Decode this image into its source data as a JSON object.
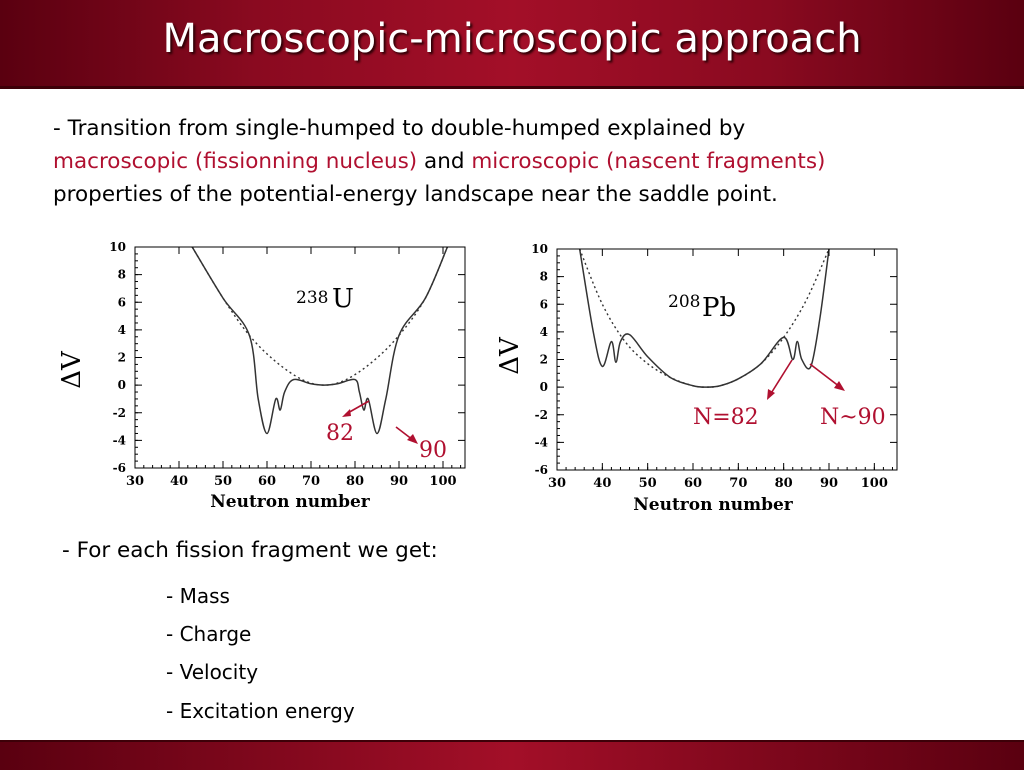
{
  "slide": {
    "title": "Macroscopic-microscopic approach",
    "intro": {
      "line1": "- Transition from single-humped to double-humped explained by",
      "macro": "macroscopic (fissionning nucleus)",
      "and": " and ",
      "micro": "microscopic (nascent fragments)",
      "line3": "properties of the potential-energy landscape near the saddle point."
    },
    "bullet": "- For each fission fragment we get:",
    "subbullets": [
      "- Mass",
      "- Charge",
      "- Velocity",
      "- Excitation energy"
    ],
    "accent_color": "#b01030",
    "bar_color": "#8a0a20"
  },
  "chart_data": [
    {
      "type": "line",
      "ylabel": "ΔV",
      "xlabel": "Neutron number",
      "nucleus_mass": "238",
      "nucleus_symbol": "U",
      "xlim": [
        30,
        105
      ],
      "ylim": [
        -6,
        10
      ],
      "x_ticks": [
        "30",
        "40",
        "50",
        "60",
        "70",
        "80",
        "90",
        "100"
      ],
      "y_ticks": [
        "10",
        "8",
        "6",
        "4",
        "2",
        "0",
        "-2",
        "-4",
        "-6"
      ],
      "series": [
        {
          "style": "dotted",
          "x": [
            43,
            50,
            56,
            62,
            68,
            73,
            78,
            84,
            90,
            96,
            101
          ],
          "y": [
            10,
            6.3,
            3.6,
            1.7,
            0.4,
            0,
            0.4,
            1.7,
            3.6,
            6.3,
            10
          ]
        },
        {
          "style": "solid",
          "x": [
            43,
            50,
            56,
            58,
            60,
            62,
            63,
            64,
            66,
            70,
            73,
            76,
            80,
            81,
            82,
            83,
            85,
            87,
            90,
            96,
            101
          ],
          "y": [
            10,
            6.3,
            3.6,
            -1,
            -3.5,
            -1,
            -1.8,
            -0.5,
            0.4,
            0.1,
            0,
            0.1,
            0.4,
            -0.5,
            -1.8,
            -1,
            -3.5,
            -1,
            3.6,
            6.3,
            10
          ]
        }
      ],
      "annotations": [
        {
          "text": "82",
          "color": "#b01030"
        },
        {
          "text": "90",
          "color": "#b01030"
        }
      ]
    },
    {
      "type": "line",
      "ylabel": "ΔV",
      "xlabel": "Neutron number",
      "nucleus_mass": "208",
      "nucleus_symbol": "Pb",
      "xlim": [
        30,
        105
      ],
      "ylim": [
        -6,
        10
      ],
      "x_ticks": [
        "30",
        "40",
        "50",
        "60",
        "70",
        "80",
        "90",
        "100"
      ],
      "y_ticks": [
        "10",
        "8",
        "6",
        "4",
        "2",
        "0",
        "-2",
        "-4",
        "-6"
      ],
      "series": [
        {
          "style": "dotted",
          "x": [
            35,
            40,
            45,
            50,
            55,
            60,
            63,
            66,
            70,
            75,
            80,
            85,
            90
          ],
          "y": [
            10,
            6,
            3.3,
            1.7,
            0.7,
            0.1,
            0,
            0.1,
            0.6,
            1.7,
            3.6,
            6.3,
            10
          ]
        },
        {
          "style": "solid",
          "x": [
            35,
            38,
            40,
            42,
            43,
            44,
            46,
            50,
            55,
            60,
            63,
            66,
            70,
            75,
            80,
            82,
            83,
            84,
            86,
            88,
            90
          ],
          "y": [
            10,
            4,
            1.5,
            3.3,
            1.8,
            3.3,
            3.8,
            2.2,
            0.7,
            0.1,
            0,
            0.1,
            0.6,
            1.7,
            3.6,
            2,
            3.3,
            2,
            1.5,
            5,
            10
          ]
        }
      ],
      "annotations": [
        {
          "text": "N=82",
          "color": "#b01030"
        },
        {
          "text": "N~90",
          "color": "#b01030"
        }
      ]
    }
  ]
}
